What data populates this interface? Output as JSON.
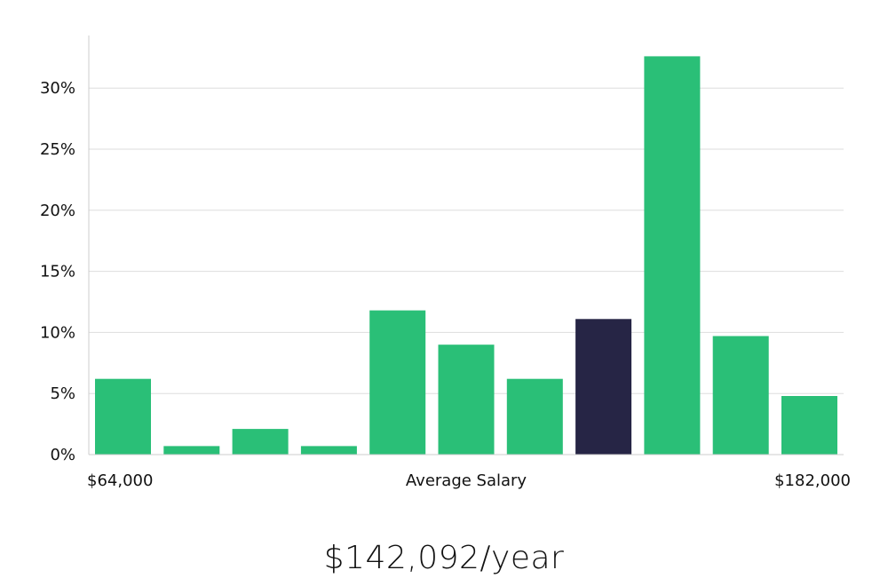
{
  "colors": {
    "bar": "#2abf77",
    "highlight": "#262545",
    "grid": "#dddddd",
    "axis": "#cccccc"
  },
  "chart_data": {
    "type": "bar",
    "title": "",
    "ylabel": "",
    "xlabel": "Average Salary",
    "x_min_label": "$64,000",
    "x_max_label": "$182,000",
    "ylim": [
      0,
      34
    ],
    "yticks": [
      0,
      5,
      10,
      15,
      20,
      25,
      30
    ],
    "ytick_labels": [
      "0%",
      "5%",
      "10%",
      "15%",
      "20%",
      "25%",
      "30%"
    ],
    "values": [
      6.2,
      0.7,
      2.1,
      0.7,
      11.8,
      9.0,
      6.2,
      11.1,
      32.6,
      9.7,
      4.8
    ],
    "highlight_index": 7
  },
  "salary": {
    "average": "$142,092/year"
  }
}
